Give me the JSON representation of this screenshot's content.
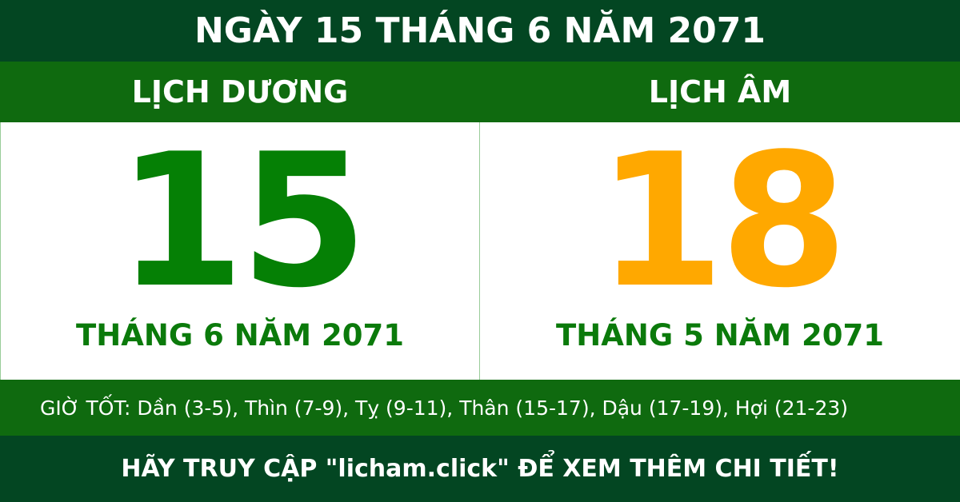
{
  "title": "NGÀY 15 THÁNG 6 NĂM 2071",
  "solar": {
    "heading": "LỊCH DƯƠNG",
    "day": "15",
    "month_year": "THÁNG 6 NĂM 2071"
  },
  "lunar": {
    "heading": "LỊCH ÂM",
    "day": "18",
    "month_year": "THÁNG 5 NĂM 2071"
  },
  "good_hours": "GIỜ TỐT: Dần (3-5), Thìn (7-9), Tỵ (9-11), Thân (15-17), Dậu (17-19), Hợi (21-23)",
  "footer": "HÃY TRUY CẬP \"licham.click\" ĐỂ XEM THÊM CHI TIẾT!",
  "colors": {
    "solar_day": "#058005",
    "lunar_day": "#ffa800",
    "dark_green": "#034622",
    "green": "#0f6a0f"
  }
}
